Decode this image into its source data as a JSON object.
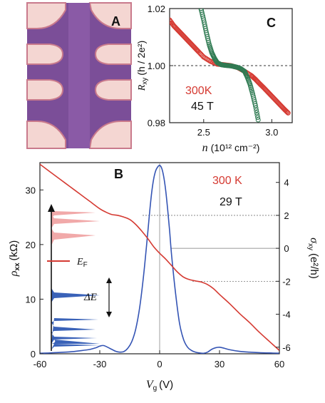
{
  "panels": {
    "a": {
      "label": "A",
      "colors": {
        "channel": "#8a5aa6",
        "background": "#7b4e98",
        "contact": "#f4d6d2",
        "edge": "#c97a8c"
      }
    },
    "b": {
      "label": "B",
      "annotation_temp": "300 K",
      "annotation_field": "29 T",
      "inset": {
        "fermi_label": "E",
        "fermi_sub": "F",
        "gap_label": "ΔE"
      }
    },
    "c": {
      "label": "C",
      "annotation_temp": "300K",
      "annotation_field": "45 T"
    }
  },
  "chart_data": [
    {
      "panel": "B",
      "type": "line",
      "xlabel": "V",
      "xlabel_sub": "g",
      "xlabel_unit": "(V)",
      "ylabel_left": "ρ",
      "ylabel_left_sub": "xx",
      "ylabel_left_unit": "(kΩ)",
      "ylabel_right": "σ",
      "ylabel_right_sub": "xy",
      "ylabel_right_unit": "(e²/h)",
      "xlim": [
        -60,
        60
      ],
      "ylim_left": [
        0,
        35
      ],
      "ylim_right": [
        -6.4,
        5.2
      ],
      "xticks": [
        -60,
        -30,
        0,
        30,
        60
      ],
      "yticks_left": [
        0,
        10,
        20,
        30
      ],
      "yticks_right": [
        -6,
        -4,
        -2,
        0,
        2,
        4
      ],
      "guide_lines_right": [
        2,
        0,
        -2
      ],
      "series": [
        {
          "axis": "left",
          "color": "#3454b4",
          "x": [
            -60,
            -55,
            -50,
            -45,
            -40,
            -35,
            -32,
            -30,
            -28,
            -25,
            -22,
            -20,
            -18,
            -16,
            -14,
            -12,
            -10,
            -8,
            -6,
            -5,
            -4,
            -3,
            -2,
            -1,
            0,
            1,
            2,
            3,
            4,
            5,
            6,
            8,
            10,
            12,
            14,
            16,
            18,
            20,
            22,
            24,
            26,
            28,
            30,
            32,
            35,
            40,
            45,
            50,
            55,
            60
          ],
          "values": [
            0.1,
            0.15,
            0.25,
            0.35,
            0.55,
            0.8,
            1.1,
            1.4,
            1.5,
            1.0,
            0.45,
            0.3,
            0.4,
            1.0,
            2.2,
            4.5,
            8.5,
            14.5,
            22.0,
            26.0,
            29.5,
            32.0,
            33.5,
            34.2,
            34.5,
            34.0,
            32.5,
            30.0,
            26.5,
            22.5,
            18.0,
            11.0,
            5.5,
            2.6,
            1.2,
            0.6,
            0.3,
            0.15,
            0.1,
            0.3,
            0.8,
            1.1,
            1.2,
            1.05,
            0.75,
            0.45,
            0.3,
            0.2,
            0.15,
            0.1
          ]
        },
        {
          "axis": "right",
          "color": "#d53a32",
          "x": [
            -60,
            -55,
            -50,
            -45,
            -40,
            -35,
            -30,
            -27,
            -24,
            -21,
            -18,
            -15,
            -12,
            -9,
            -6,
            -3,
            0,
            3,
            6,
            9,
            12,
            15,
            18,
            21,
            24,
            27,
            30,
            35,
            40,
            45,
            50,
            55,
            60
          ],
          "values": [
            5.1,
            4.65,
            4.2,
            3.75,
            3.3,
            2.85,
            2.4,
            2.2,
            2.05,
            2.0,
            1.9,
            1.75,
            1.45,
            1.05,
            0.6,
            0.1,
            -0.3,
            -0.65,
            -1.05,
            -1.45,
            -1.75,
            -1.9,
            -1.98,
            -2.05,
            -2.2,
            -2.45,
            -2.8,
            -3.35,
            -3.95,
            -4.5,
            -5.1,
            -5.65,
            -6.2
          ]
        }
      ]
    },
    {
      "panel": "C",
      "type": "scatter",
      "xlabel": "n",
      "xlabel_unit": "(10¹² cm⁻²)",
      "ylabel": "R",
      "ylabel_sub": "xy",
      "ylabel_unit": "(h / 2e²)",
      "xlim": [
        2.25,
        3.15
      ],
      "ylim": [
        0.98,
        1.02
      ],
      "xticks": [
        2.5,
        3.0
      ],
      "xtick_labels": [
        "2.5",
        "3.0"
      ],
      "yticks": [
        0.98,
        1.0,
        1.02
      ],
      "ytick_labels": [
        "0.98",
        "1.00",
        "1.02"
      ],
      "reference_line": 1.0,
      "series": [
        {
          "color": "#d53a32",
          "x": [
            2.25,
            2.28,
            2.31,
            2.34,
            2.37,
            2.4,
            2.43,
            2.46,
            2.5,
            2.55,
            2.6,
            2.65,
            2.7,
            2.75,
            2.8,
            2.85,
            2.88,
            2.91,
            2.94,
            2.97,
            3.0,
            3.03,
            3.06,
            3.09,
            3.12
          ],
          "values": [
            1.016,
            1.014,
            1.0125,
            1.011,
            1.0095,
            1.008,
            1.0065,
            1.005,
            1.003,
            1.0015,
            1.0005,
            1.0003,
            1.0,
            0.9993,
            0.998,
            0.9965,
            0.9952,
            0.9937,
            0.9923,
            0.9908,
            0.9893,
            0.9878,
            0.9863,
            0.9848,
            0.9834
          ]
        },
        {
          "color": "#2f7a52",
          "x": [
            2.48,
            2.5,
            2.52,
            2.54,
            2.56,
            2.58,
            2.6,
            2.63,
            2.66,
            2.7,
            2.74,
            2.77,
            2.8,
            2.82,
            2.84,
            2.86,
            2.88,
            2.9
          ],
          "values": [
            1.02,
            1.016,
            1.0115,
            1.0075,
            1.0045,
            1.0025,
            1.001,
            1.0003,
            1.0001,
            0.9999,
            0.9995,
            0.999,
            0.998,
            0.996,
            0.9935,
            0.99,
            0.986,
            0.981
          ]
        }
      ]
    }
  ]
}
